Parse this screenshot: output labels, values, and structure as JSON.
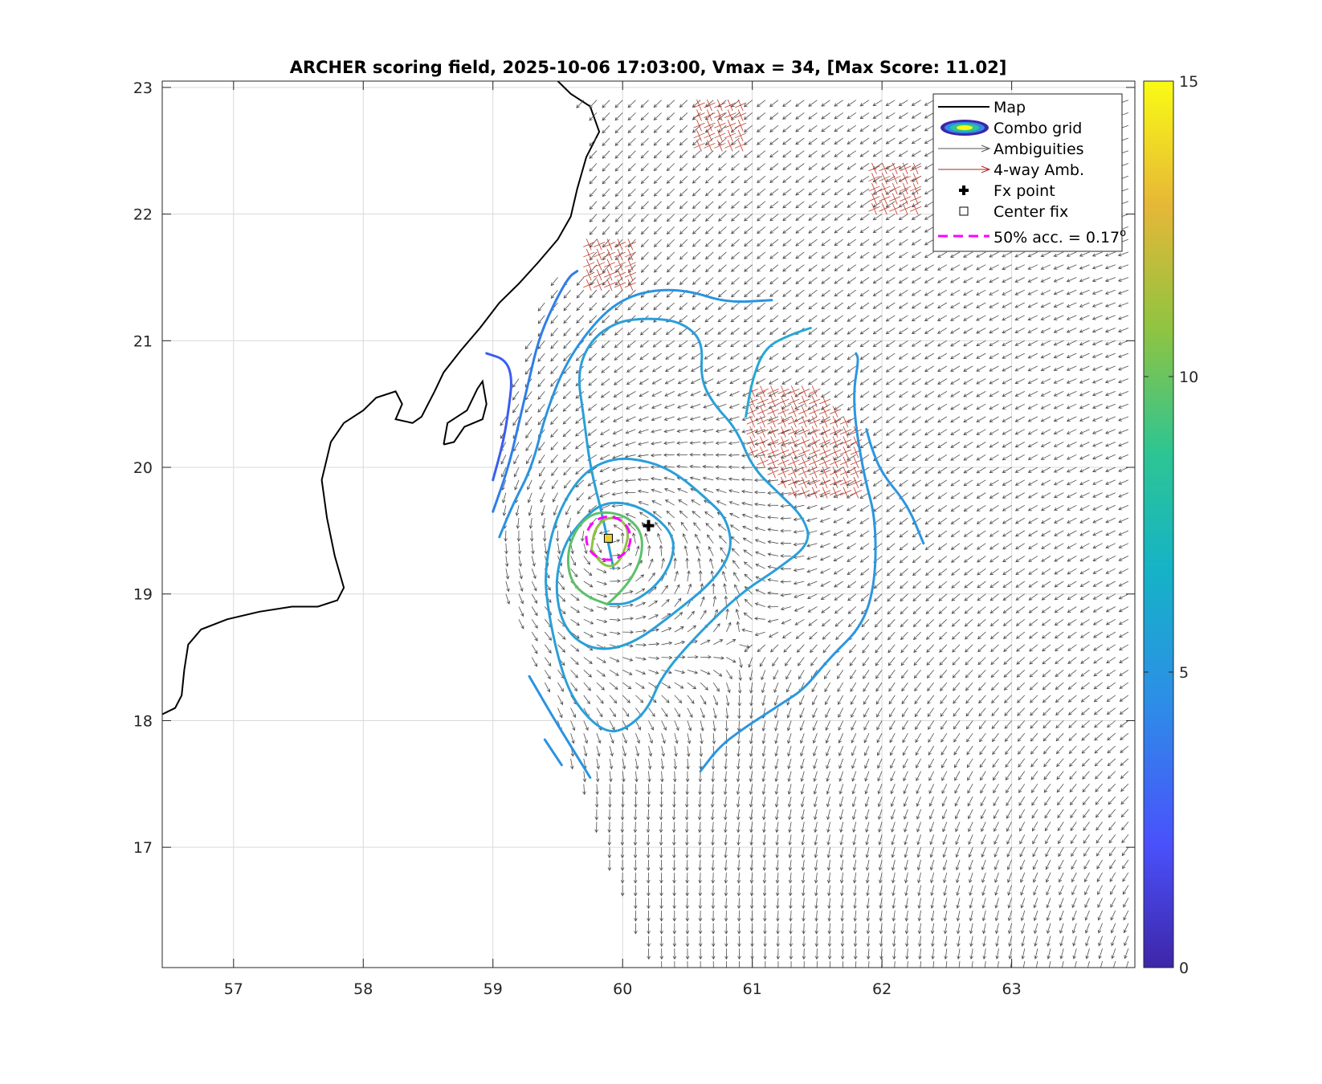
{
  "chart_data": {
    "type": "contour",
    "title": "ARCHER scoring field, 2025-10-06 17:03:00, Vmax = 34, [Max Score: 11.02]",
    "title_info": {
      "datetime": "2025-10-06 17:03:00",
      "vmax": 34,
      "max_score": 11.02
    },
    "xlabel": "",
    "ylabel": "",
    "xlim": [
      56.45,
      63.95
    ],
    "ylim": [
      16.05,
      23.05
    ],
    "xticks": [
      "57",
      "58",
      "59",
      "60",
      "61",
      "62",
      "63"
    ],
    "yticks": [
      "17",
      "18",
      "19",
      "20",
      "21",
      "22",
      "23"
    ],
    "grid": true,
    "colorbar": {
      "min": 0,
      "max": 15,
      "ticks": [
        "0",
        "5",
        "10",
        "15"
      ],
      "colormap": [
        "#3e26a8",
        "#4a51fc",
        "#2d8ee7",
        "#15b3c6",
        "#2dc593",
        "#8fc441",
        "#e6b737",
        "#f9fb15"
      ]
    },
    "legend": {
      "location": "top-right",
      "entries": [
        {
          "label": "Map",
          "style": "line",
          "color": "#000000"
        },
        {
          "label": "Combo grid",
          "style": "ellipse",
          "color": "#3e26a8"
        },
        {
          "label": "Ambiguities",
          "style": "arrow",
          "color": "#555555"
        },
        {
          "label": "4-way Amb.",
          "style": "arrow",
          "color": "#b22222"
        },
        {
          "label": "Fx point",
          "style": "plus",
          "color": "#000000"
        },
        {
          "label": "Center fix",
          "style": "square",
          "color": "#000000"
        },
        {
          "label": "50% acc. = 0.17",
          "superscript": "o",
          "style": "dashed",
          "color": "#ff00ff"
        }
      ]
    },
    "fx_point": {
      "lon": 60.2,
      "lat": 19.54
    },
    "center_fix": {
      "lon": 59.89,
      "lat": 19.44
    },
    "accuracy_circle": {
      "lon": 59.89,
      "lat": 19.44,
      "radius_deg": 0.17
    },
    "contours": [
      {
        "level": 4.0,
        "color": "#3a5df0",
        "points": [
          [
            59.0,
            19.9
          ],
          [
            59.08,
            20.2
          ],
          [
            59.12,
            20.45
          ],
          [
            59.15,
            20.7
          ],
          [
            59.1,
            20.85
          ],
          [
            58.95,
            20.9
          ]
        ]
      },
      {
        "level": 4.5,
        "color": "#2f7ee8",
        "points": [
          [
            59.0,
            19.65
          ],
          [
            59.12,
            20.0
          ],
          [
            59.2,
            20.35
          ],
          [
            59.28,
            20.7
          ],
          [
            59.35,
            21.0
          ],
          [
            59.45,
            21.25
          ],
          [
            59.58,
            21.5
          ],
          [
            59.65,
            21.55
          ]
        ]
      },
      {
        "level": 5.2,
        "color": "#2a93e0",
        "points": [
          [
            59.05,
            19.45
          ],
          [
            59.15,
            19.7
          ],
          [
            59.3,
            20.0
          ],
          [
            59.4,
            20.4
          ],
          [
            59.55,
            20.8
          ],
          [
            59.75,
            21.1
          ],
          [
            59.95,
            21.3
          ],
          [
            60.2,
            21.4
          ],
          [
            60.5,
            21.4
          ],
          [
            60.8,
            21.3
          ],
          [
            61.15,
            21.32
          ]
        ]
      },
      {
        "level": 5.8,
        "color": "#2a93e0",
        "points": [
          [
            59.28,
            18.35
          ],
          [
            59.45,
            18.05
          ],
          [
            59.6,
            17.8
          ],
          [
            59.75,
            17.55
          ]
        ]
      },
      {
        "level": 5.8,
        "color": "#2a93e0",
        "points": [
          [
            59.4,
            17.85
          ],
          [
            59.53,
            17.65
          ]
        ]
      },
      {
        "level": 5.3,
        "color": "#2c96df",
        "points": [
          [
            60.6,
            17.6
          ],
          [
            60.75,
            17.8
          ],
          [
            60.95,
            17.95
          ],
          [
            61.1,
            18.05
          ],
          [
            61.25,
            18.15
          ],
          [
            61.4,
            18.25
          ],
          [
            61.6,
            18.5
          ],
          [
            61.85,
            18.75
          ],
          [
            61.95,
            19.1
          ],
          [
            61.95,
            19.6
          ],
          [
            61.87,
            19.9
          ],
          [
            61.8,
            20.3
          ],
          [
            61.78,
            20.6
          ],
          [
            61.82,
            20.85
          ],
          [
            61.8,
            20.9
          ]
        ]
      },
      {
        "level": 5.5,
        "color": "#2c96df",
        "points": [
          [
            62.32,
            19.4
          ],
          [
            62.2,
            19.7
          ],
          [
            62.0,
            19.95
          ],
          [
            61.92,
            20.15
          ],
          [
            61.88,
            20.3
          ]
        ]
      },
      {
        "level": 5.8,
        "color": "#2a9fd8",
        "points": [
          [
            59.93,
            19.2
          ],
          [
            59.85,
            19.6
          ],
          [
            59.75,
            20.0
          ],
          [
            59.7,
            20.4
          ],
          [
            59.65,
            20.75
          ],
          [
            59.75,
            21.0
          ],
          [
            59.95,
            21.15
          ],
          [
            60.2,
            21.18
          ],
          [
            60.45,
            21.15
          ],
          [
            60.62,
            21.0
          ],
          [
            60.6,
            20.7
          ],
          [
            60.7,
            20.5
          ],
          [
            60.88,
            20.3
          ],
          [
            61.0,
            20.0
          ],
          [
            61.2,
            19.8
          ],
          [
            61.4,
            19.6
          ],
          [
            61.45,
            19.4
          ],
          [
            61.2,
            19.2
          ],
          [
            60.9,
            19.0
          ],
          [
            60.55,
            18.65
          ],
          [
            60.3,
            18.35
          ],
          [
            60.2,
            18.1
          ],
          [
            60.05,
            17.95
          ],
          [
            59.9,
            17.9
          ],
          [
            59.75,
            18.0
          ],
          [
            59.6,
            18.2
          ],
          [
            59.5,
            18.5
          ],
          [
            59.42,
            18.9
          ],
          [
            59.4,
            19.2
          ],
          [
            59.48,
            19.6
          ],
          [
            59.68,
            19.95
          ],
          [
            59.93,
            20.08
          ],
          [
            60.2,
            20.05
          ],
          [
            60.42,
            19.95
          ],
          [
            60.65,
            19.75
          ],
          [
            60.8,
            19.6
          ],
          [
            60.85,
            19.35
          ],
          [
            60.7,
            19.1
          ],
          [
            60.4,
            18.85
          ],
          [
            60.1,
            18.62
          ],
          [
            59.85,
            18.55
          ],
          [
            59.65,
            18.62
          ],
          [
            59.52,
            18.8
          ],
          [
            59.48,
            19.1
          ],
          [
            59.55,
            19.4
          ],
          [
            59.7,
            19.6
          ],
          [
            59.85,
            19.72
          ],
          [
            60.05,
            19.72
          ],
          [
            60.25,
            19.62
          ],
          [
            60.4,
            19.45
          ],
          [
            60.38,
            19.25
          ],
          [
            60.25,
            19.05
          ],
          [
            60.05,
            18.92
          ],
          [
            59.88,
            18.92
          ]
        ]
      },
      {
        "level": 6.2,
        "color": "#26a8d3",
        "points": [
          [
            60.95,
            20.4
          ],
          [
            61.0,
            20.7
          ],
          [
            61.1,
            20.95
          ],
          [
            61.3,
            21.05
          ],
          [
            61.45,
            21.1
          ]
        ]
      },
      {
        "level": 8.8,
        "color": "#5cc06a",
        "points": [
          [
            59.88,
            18.92
          ],
          [
            59.72,
            18.98
          ],
          [
            59.6,
            19.1
          ],
          [
            59.57,
            19.3
          ],
          [
            59.63,
            19.5
          ],
          [
            59.75,
            19.63
          ],
          [
            59.9,
            19.65
          ],
          [
            60.05,
            19.6
          ],
          [
            60.15,
            19.48
          ],
          [
            60.15,
            19.3
          ],
          [
            60.07,
            19.12
          ],
          [
            59.95,
            18.98
          ],
          [
            59.88,
            18.92
          ]
        ]
      },
      {
        "level": 9.6,
        "color": "#8dc246",
        "points": [
          [
            59.76,
            19.35
          ],
          [
            59.78,
            19.5
          ],
          [
            59.86,
            19.6
          ],
          [
            59.98,
            19.6
          ],
          [
            60.05,
            19.5
          ],
          [
            60.02,
            19.35
          ],
          [
            59.95,
            19.22
          ],
          [
            59.85,
            19.22
          ],
          [
            59.76,
            19.35
          ]
        ]
      }
    ],
    "coastline": [
      [
        [
          56.45,
          18.05
        ],
        [
          56.55,
          18.1
        ],
        [
          56.6,
          18.2
        ],
        [
          56.62,
          18.4
        ],
        [
          56.65,
          18.6
        ],
        [
          56.75,
          18.72
        ],
        [
          56.95,
          18.8
        ],
        [
          57.2,
          18.86
        ],
        [
          57.45,
          18.9
        ],
        [
          57.65,
          18.9
        ],
        [
          57.8,
          18.95
        ],
        [
          57.85,
          19.05
        ],
        [
          57.78,
          19.3
        ],
        [
          57.72,
          19.6
        ],
        [
          57.68,
          19.9
        ],
        [
          57.75,
          20.2
        ],
        [
          57.85,
          20.35
        ],
        [
          58.0,
          20.45
        ],
        [
          58.1,
          20.55
        ],
        [
          58.25,
          20.6
        ],
        [
          58.3,
          20.5
        ],
        [
          58.25,
          20.38
        ],
        [
          58.38,
          20.35
        ],
        [
          58.45,
          20.4
        ],
        [
          58.55,
          20.6
        ],
        [
          58.62,
          20.75
        ],
        [
          58.75,
          20.92
        ],
        [
          58.9,
          21.1
        ],
        [
          59.05,
          21.3
        ],
        [
          59.2,
          21.45
        ],
        [
          59.35,
          21.62
        ],
        [
          59.5,
          21.8
        ],
        [
          59.6,
          21.98
        ],
        [
          59.65,
          22.2
        ],
        [
          59.72,
          22.45
        ],
        [
          59.82,
          22.65
        ],
        [
          59.75,
          22.85
        ],
        [
          59.6,
          22.95
        ],
        [
          59.5,
          23.05
        ]
      ],
      [
        [
          58.62,
          20.18
        ],
        [
          58.65,
          20.35
        ],
        [
          58.8,
          20.45
        ],
        [
          58.88,
          20.62
        ],
        [
          58.92,
          20.68
        ],
        [
          58.95,
          20.5
        ],
        [
          58.92,
          20.38
        ],
        [
          58.78,
          20.32
        ],
        [
          58.7,
          20.2
        ],
        [
          58.62,
          20.18
        ]
      ]
    ],
    "wind_field": {
      "component": "ambiguities",
      "center": [
        59.89,
        19.44
      ],
      "vmax_kt": 34
    },
    "four_way_ambiguity_regions": [
      [
        59.9,
        21.6
      ],
      [
        61.4,
        20.2
      ],
      [
        60.75,
        22.7
      ],
      [
        62.1,
        22.2
      ]
    ]
  }
}
